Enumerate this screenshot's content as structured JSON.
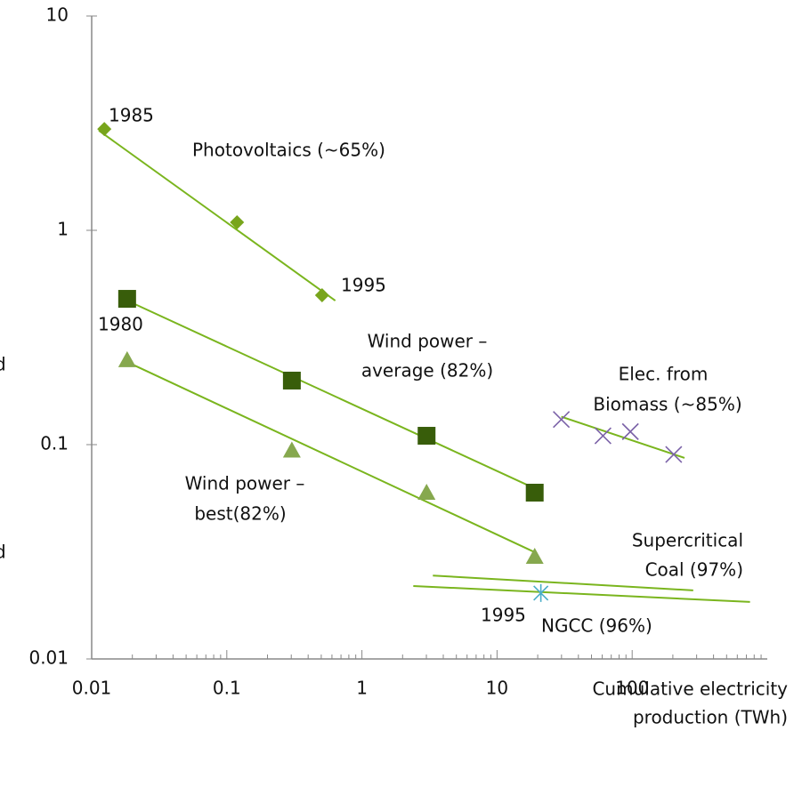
{
  "chart_data": {
    "type": "scatter",
    "xlog": true,
    "ylog": true,
    "xlim": [
      0.01,
      1000
    ],
    "ylim": [
      0.01,
      10
    ],
    "xticks": [
      0.01,
      0.1,
      1,
      10,
      100
    ],
    "yticks": [
      0.01,
      0.1,
      1,
      10
    ],
    "xlabel": [
      "Cumulative electricity",
      "production (TWh)"
    ],
    "series": [
      {
        "color": "#78a51c",
        "marker": "diamond",
        "x": [
          0.0124,
          0.119,
          0.507
        ],
        "values": [
          2.97,
          1.09,
          0.498
        ],
        "trend": {
          "x": [
            0.0113,
            0.635
          ],
          "values": [
            2.92,
            0.47
          ]
        }
      },
      {
        "color": "#385d0a",
        "marker": "square",
        "x": [
          0.0183,
          0.303,
          3.01,
          19.0
        ],
        "values": [
          0.479,
          0.199,
          0.11,
          0.0597
        ],
        "trend": {
          "x": [
            0.0183,
            20.2
          ],
          "values": [
            0.47,
            0.0614
          ]
        }
      },
      {
        "color": "#86a84e",
        "marker": "triangle",
        "x": [
          0.0183,
          0.303,
          3.01,
          19.0
        ],
        "values": [
          0.248,
          0.094,
          0.0597,
          0.03
        ],
        "trend": {
          "x": [
            0.0183,
            19.6
          ],
          "values": [
            0.243,
            0.0312
          ]
        }
      },
      {
        "color": "#7b62a8",
        "marker": "cross",
        "x": [
          29.9,
          60.8,
          97,
          203
        ],
        "values": [
          0.131,
          0.11,
          0.115,
          0.09
        ],
        "trend": {
          "x": [
            29.9,
            244
          ],
          "values": [
            0.135,
            0.0867
          ]
        }
      },
      {
        "color": "#4aaec8",
        "marker": "asterisk",
        "x": [
          21.1
        ],
        "values": [
          0.0203
        ]
      }
    ],
    "lines": [
      {
        "color": "#7ab51e",
        "x": [
          3.35,
          283
        ],
        "values": [
          0.0245,
          0.0209
        ]
      },
      {
        "color": "#7ab51e",
        "x": [
          2.4,
          745
        ],
        "values": [
          0.0219,
          0.01845
        ]
      }
    ],
    "annotations": [
      "1985",
      "Photovoltaics (~65%)",
      "1995",
      "1980",
      "Wind power –",
      "average (82%)",
      "Elec. from",
      "Biomass (~85%)",
      "Wind power –",
      "best(82%)",
      "Supercritical",
      "Coal (97%)",
      "1995",
      "NGCC (96%)",
      "d",
      "d"
    ]
  }
}
